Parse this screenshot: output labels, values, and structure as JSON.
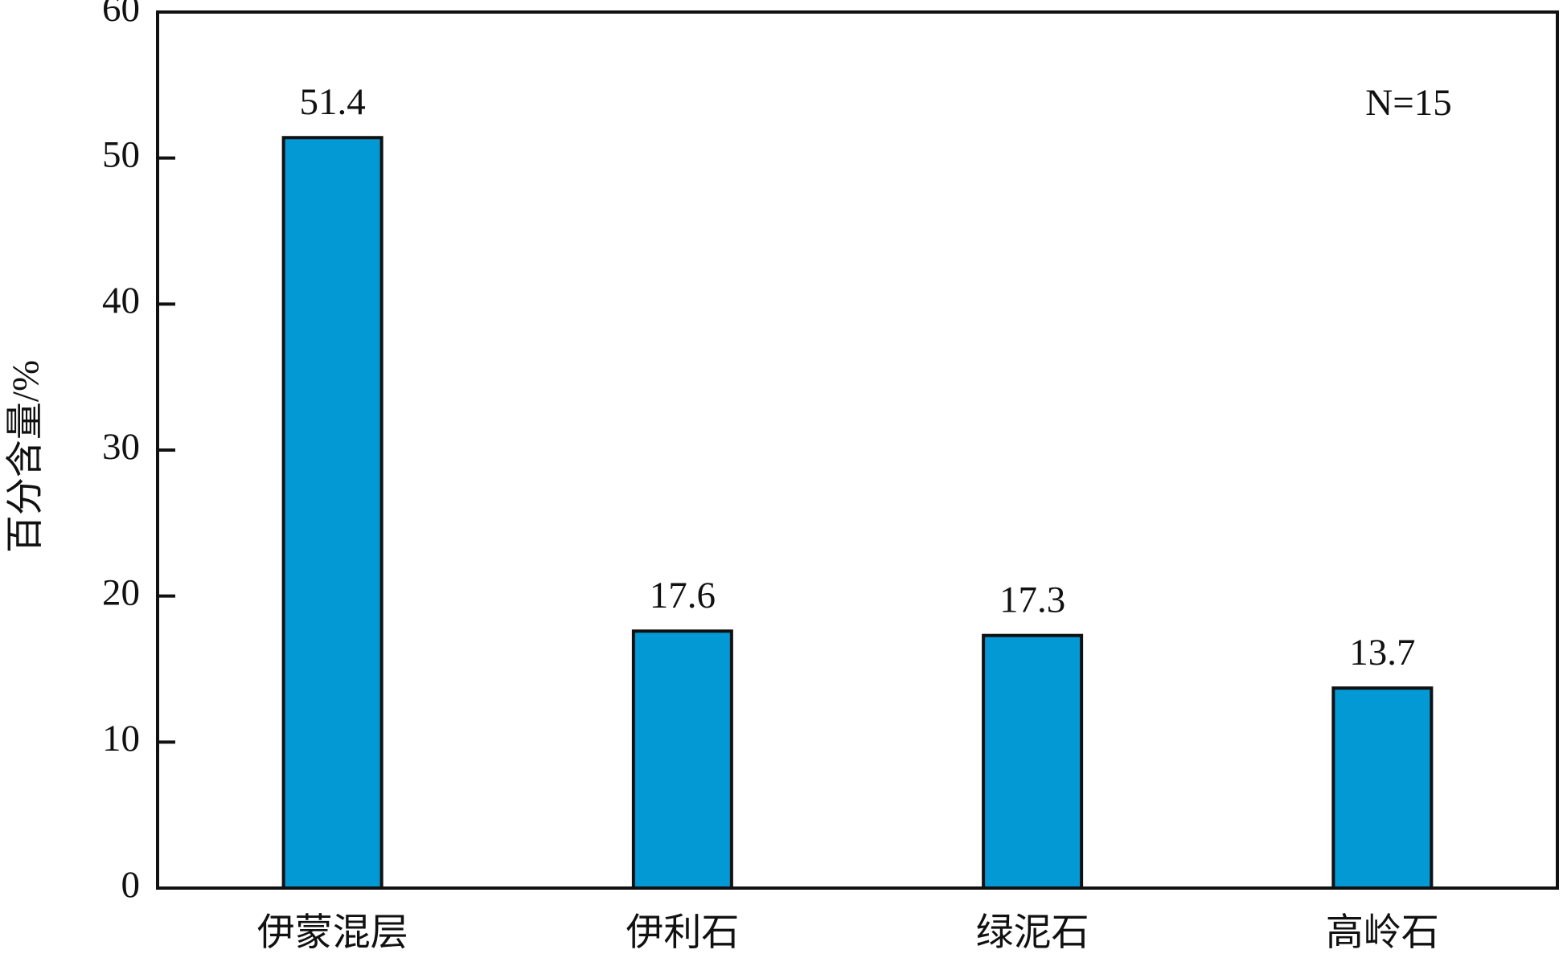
{
  "chart_data": {
    "type": "bar",
    "y_label": "百分含量/%",
    "annotation": "N=15",
    "categories": [
      "伊蒙混层",
      "伊利石",
      "绿泥石",
      "高岭石"
    ],
    "values": [
      51.4,
      17.6,
      17.3,
      13.7
    ],
    "color": "#0399d4",
    "ylim": [
      0,
      60
    ],
    "yticks": [
      0,
      10,
      20,
      30,
      40,
      50,
      60
    ],
    "grid": false
  }
}
